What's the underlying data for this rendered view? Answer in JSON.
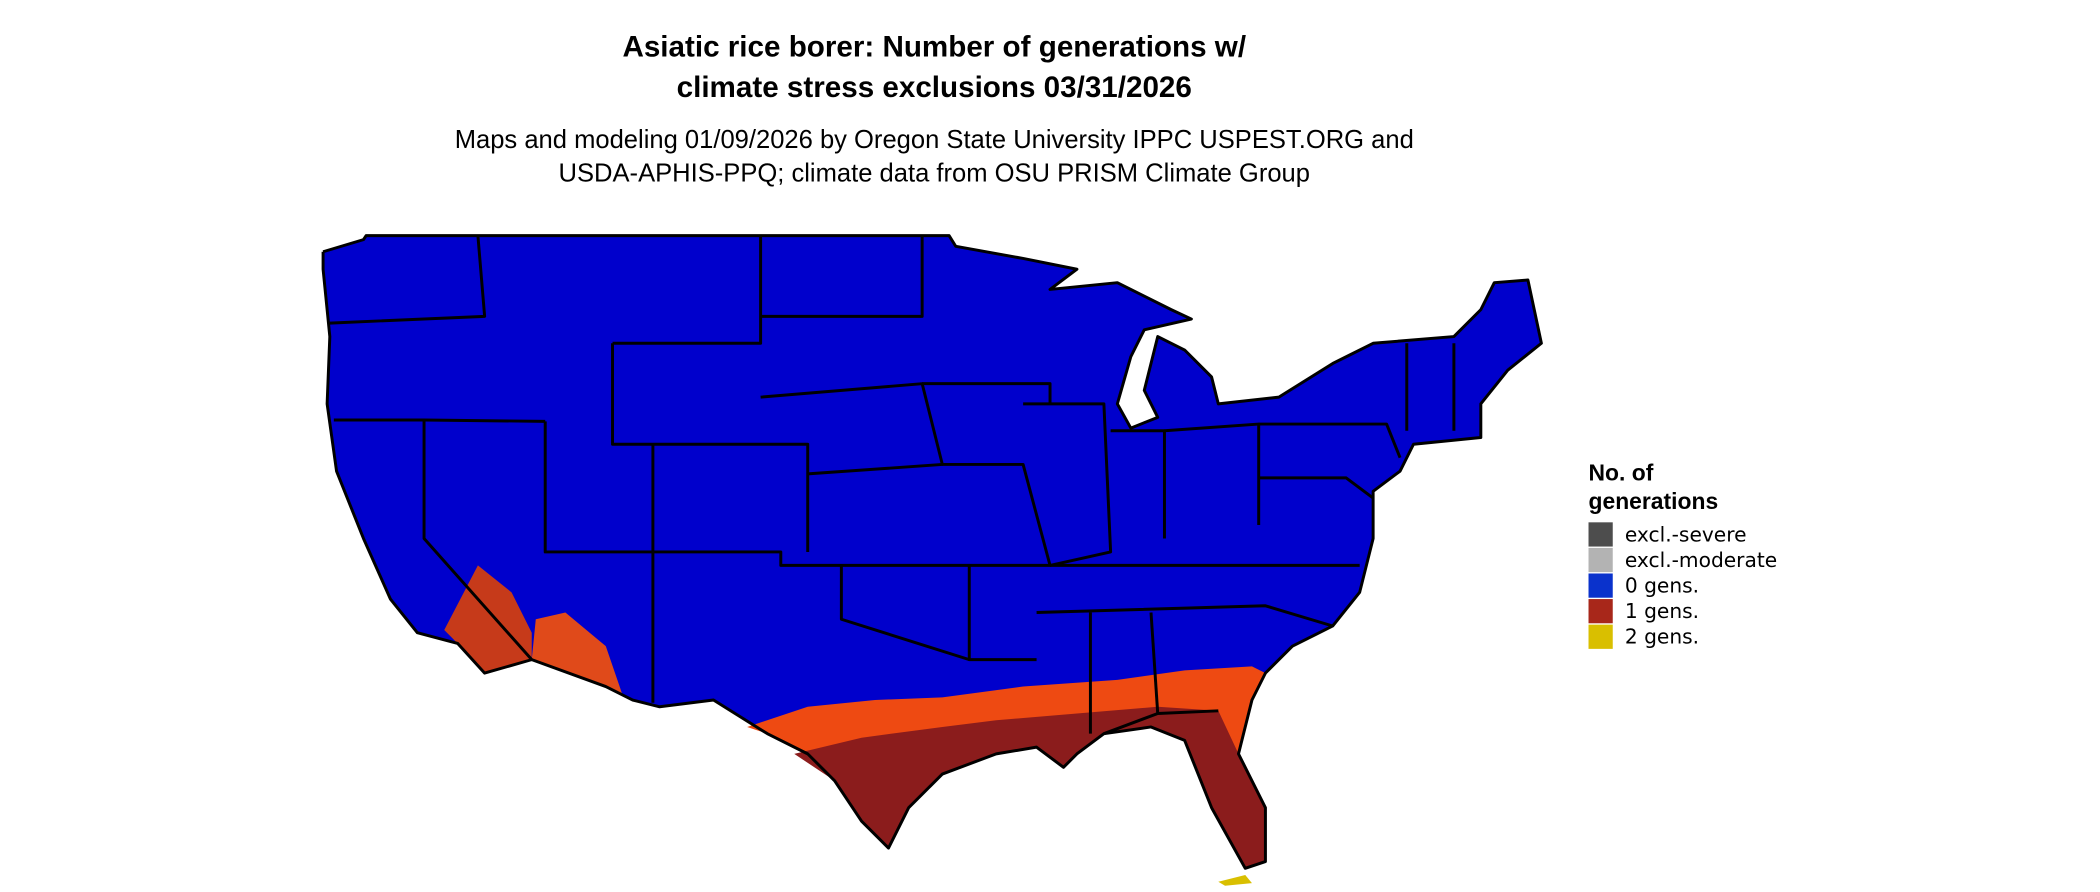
{
  "title": "Asiatic rice borer: Number of generations w/ climate stress exclusions 03/31/2026",
  "subtitle": [
    "Maps and modeling 01/09/2026 by Oregon State University IPPC USPEST.ORG and",
    "USDA-APHIS-PPQ; climate data from OSU PRISM Climate Group"
  ],
  "legend": {
    "title": [
      "No. of",
      "generations"
    ],
    "items": [
      {
        "label": "excl.-severe",
        "color": "#4d4d4d"
      },
      {
        "label": "excl.-moderate",
        "color": "#b3b3b3"
      },
      {
        "label": "0 gens.",
        "color": "#0a32cc"
      },
      {
        "label": "1 gens.",
        "color": "#a8271a"
      },
      {
        "label": "2 gens.",
        "color": "#d9bf00"
      }
    ]
  }
}
